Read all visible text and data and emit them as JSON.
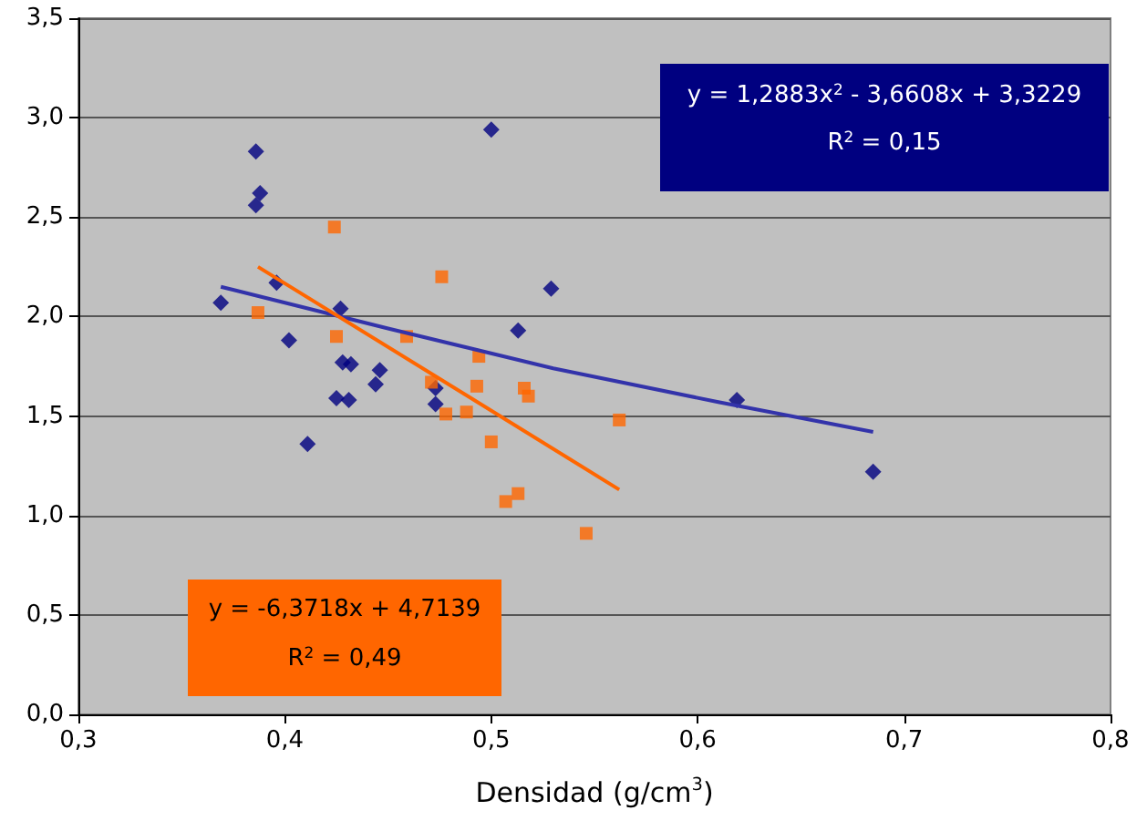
{
  "chart_data": {
    "type": "scatter",
    "xlabel": "Densidad (g/cm$^{3}$)",
    "xlim": [
      0.3,
      0.8
    ],
    "xticks": [
      {
        "value": 0.3,
        "label": "0,3"
      },
      {
        "value": 0.4,
        "label": "0,4"
      },
      {
        "value": 0.5,
        "label": "0,5"
      },
      {
        "value": 0.6,
        "label": "0,6"
      },
      {
        "value": 0.7,
        "label": "0,7"
      },
      {
        "value": 0.8,
        "label": "0,8"
      }
    ],
    "ylim": [
      0,
      3.5
    ],
    "yticks": [
      {
        "value": 0,
        "label": "0,0"
      },
      {
        "value": 0.5,
        "label": "0,5"
      },
      {
        "value": 1,
        "label": "1,0"
      },
      {
        "value": 1.5,
        "label": "1,5"
      },
      {
        "value": 2,
        "label": "2,0"
      },
      {
        "value": 2.5,
        "label": "2,5"
      },
      {
        "value": 3,
        "label": "3,0"
      },
      {
        "value": 3.5,
        "label": "3,5"
      }
    ],
    "grid": "y",
    "series": [
      {
        "marker": "diamond",
        "color": "#000080",
        "x": [
          0.369,
          0.386,
          0.388,
          0.386,
          0.396,
          0.402,
          0.411,
          0.425,
          0.427,
          0.428,
          0.432,
          0.431,
          0.444,
          0.446,
          0.473,
          0.473,
          0.5,
          0.513,
          0.529,
          0.619,
          0.685
        ],
        "values": [
          2.07,
          2.83,
          2.62,
          2.56,
          2.17,
          1.88,
          1.36,
          1.59,
          2.04,
          1.77,
          1.76,
          1.58,
          1.66,
          1.73,
          1.64,
          1.56,
          2.94,
          1.93,
          2.14,
          1.58,
          1.22
        ]
      },
      {
        "marker": "square",
        "color": "#ff6600",
        "x": [
          0.387,
          0.424,
          0.425,
          0.459,
          0.476,
          0.471,
          0.478,
          0.488,
          0.494,
          0.493,
          0.5,
          0.507,
          0.513,
          0.516,
          0.518,
          0.546,
          0.562
        ],
        "values": [
          2.02,
          2.45,
          1.9,
          1.9,
          2.2,
          1.67,
          1.51,
          1.52,
          1.8,
          1.65,
          1.37,
          1.07,
          1.11,
          1.64,
          1.6,
          0.91,
          1.48
        ]
      },
      {
        "type": "line",
        "marker": "none",
        "color": "#3333aa",
        "x": [
          0.369,
          0.45,
          0.53,
          0.61,
          0.685
        ],
        "values": [
          2.15,
          1.94,
          1.74,
          1.57,
          1.42
        ]
      },
      {
        "type": "line",
        "marker": "none",
        "color": "#ff6600",
        "x": [
          0.387,
          0.562
        ],
        "values": [
          2.25,
          1.13
        ]
      }
    ],
    "annotations": [
      "y = 1,2883x$^{2}$ - 3,6608x + 3,3229",
      "R$^{2}$ = 0,15",
      "y = -6,3718x + 4,7139",
      "R$^{2}$ = 0,49"
    ]
  }
}
